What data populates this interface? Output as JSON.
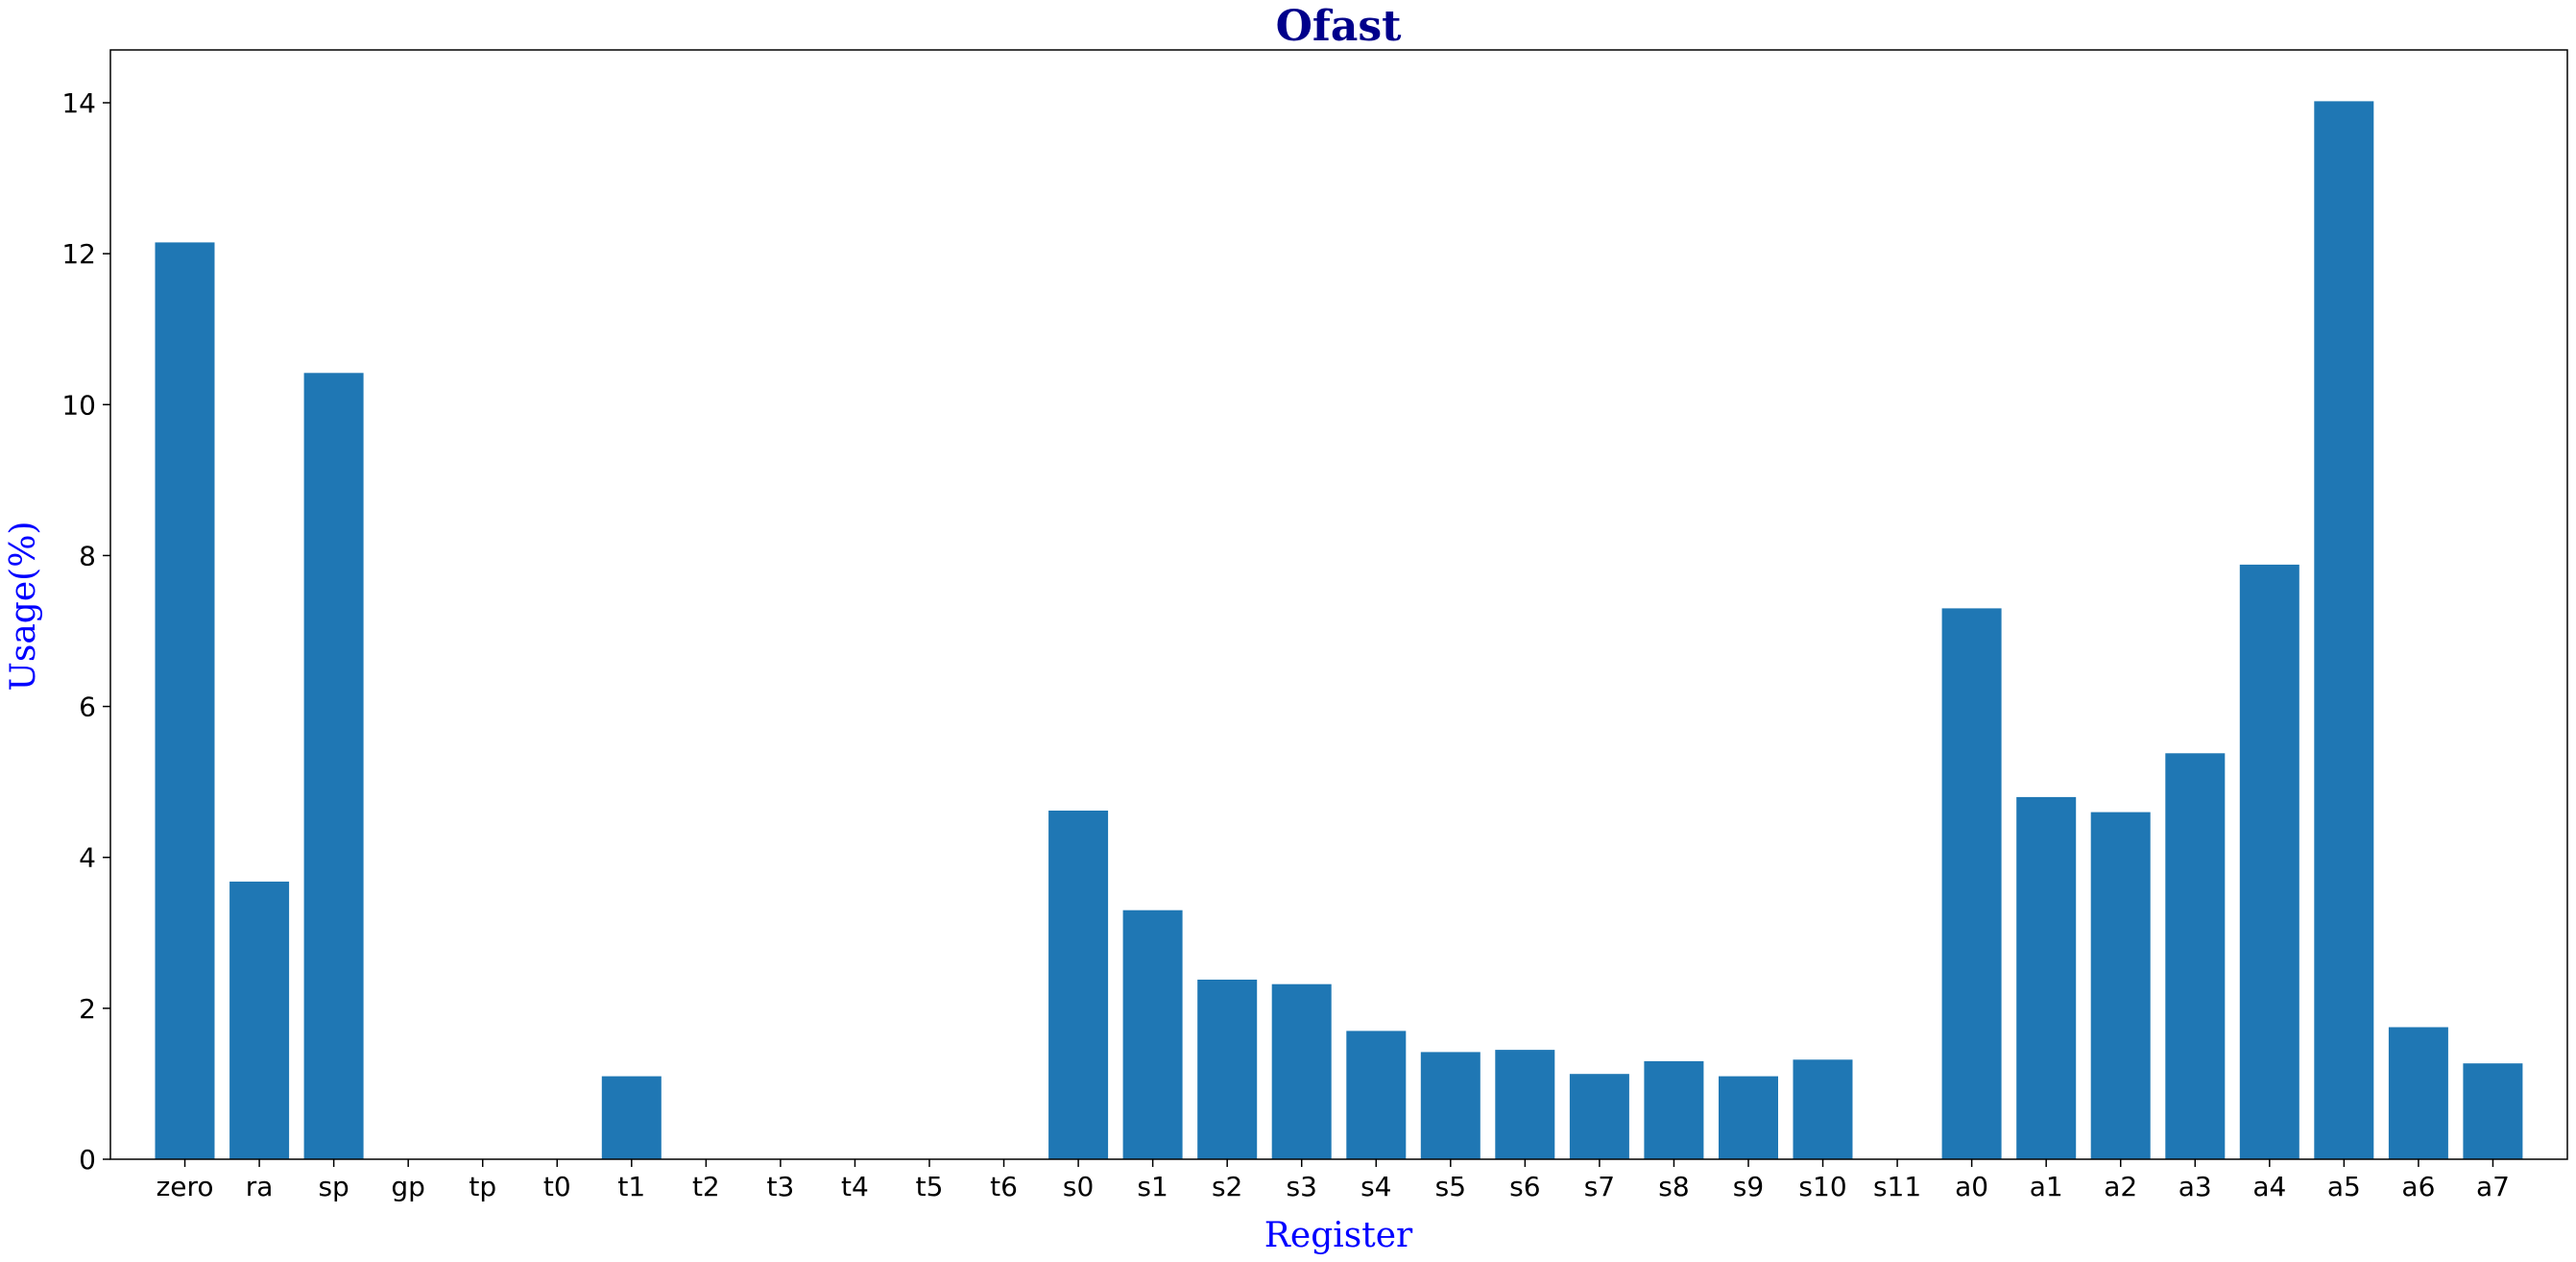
{
  "chart_data": {
    "type": "bar",
    "title": "Ofast",
    "xlabel": "Register",
    "ylabel": "Usage(%)",
    "ylim": [
      0,
      14.7
    ],
    "yticks": [
      "0",
      "2",
      "4",
      "6",
      "8",
      "10",
      "12",
      "14"
    ],
    "grid": false,
    "categories": [
      "zero",
      "ra",
      "sp",
      "gp",
      "tp",
      "t0",
      "t1",
      "t2",
      "t3",
      "t4",
      "t5",
      "t6",
      "s0",
      "s1",
      "s2",
      "s3",
      "s4",
      "s5",
      "s6",
      "s7",
      "s8",
      "s9",
      "s10",
      "s11",
      "a0",
      "a1",
      "a2",
      "a3",
      "a4",
      "a5",
      "a6",
      "a7"
    ],
    "values": [
      12.15,
      3.68,
      10.42,
      0,
      0,
      0,
      1.1,
      0,
      0,
      0,
      0,
      0,
      4.62,
      3.3,
      2.38,
      2.32,
      1.7,
      1.42,
      1.45,
      1.13,
      1.3,
      1.1,
      1.32,
      0,
      7.3,
      4.8,
      4.6,
      5.38,
      7.88,
      14.02,
      1.75,
      1.27
    ]
  },
  "colors": {
    "bar": "#1f77b4",
    "title": "#00008b",
    "axis_label": "#0000ff",
    "axes": "#000000"
  }
}
